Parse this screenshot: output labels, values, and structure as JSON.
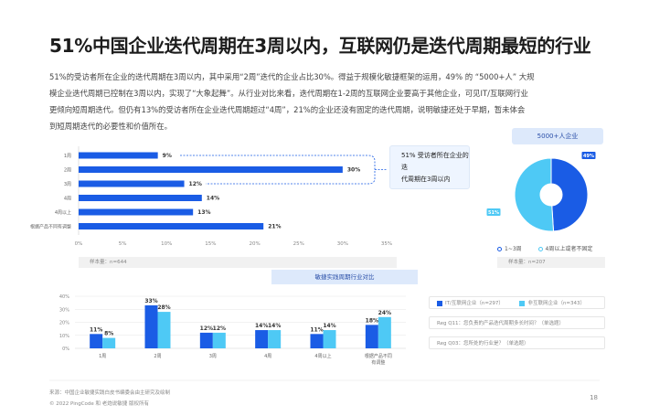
{
  "page": {
    "title": "51%中国企业迭代周期在3周以内，互联网仍是迭代周期最短的行业",
    "paragraph": [
      "51%的受访者所在企业的迭代周期在3周以内，其中采用“2周”迭代的企业占比30%。得益于规模化敏捷框架的运用，49% 的 “5000+人” 大规",
      "模企业迭代周期已控制在3周以内，实现了“大象起舞”。从行业对比来看，迭代周期在1-2周的互联网企业要高于其他企业，可见IT/互联网行业",
      "更倾向短周期迭代。但仍有13%的受访者所在企业迭代周期超过“4周”，21%的企业还没有固定的迭代周期，说明敏捷还处于早期，暂未体会",
      "到短周期迭代的必要性和价值所在。"
    ],
    "callout": [
      "51% 受访者所在企业的迭",
      "代周期在3周以内"
    ],
    "sample_left": "样本量：n=644",
    "sample_right": "样本量：n=207",
    "pie_title": "5000+人企业",
    "compare_title": "敏捷实践周期行业对比",
    "notes": {
      "legend_line": [
        "IT/互联网企业（n=297）",
        "非互联网企业（n=343）"
      ],
      "q1": "Reg Q11：您负责的产品迭代周期多长时间？（单选题）",
      "q2": "Reg Q03：您所处的行业是？（单选题）"
    },
    "source": "来源：中国企业敏捷实践白皮书编委会由主研究及绘制",
    "copyright": "© 2022 PingCode 和 老炮说敏捷 版权所有",
    "page_number": "18"
  },
  "colors": {
    "primary": "#1a5ce5",
    "cyan": "#4ec9f5",
    "navy": "#14275e",
    "grid": "#e6e6e6"
  },
  "chart_data": [
    {
      "type": "bar",
      "orientation": "horizontal",
      "categories": [
        "1周",
        "2周",
        "3周",
        "4周",
        "4周以上",
        "根据产品不同有调整"
      ],
      "values": [
        9,
        30,
        12,
        14,
        13,
        21
      ],
      "value_labels": [
        "9%",
        "30%",
        "12%",
        "14%",
        "13%",
        "21%"
      ],
      "xlim": [
        0,
        35
      ],
      "xticks": [
        "0%",
        "5%",
        "10%",
        "15%",
        "20%",
        "25%",
        "30%",
        "35%"
      ],
      "grid": false,
      "color": "#1a5ce5"
    },
    {
      "type": "pie",
      "labels": [
        "1~3周",
        "4周以上或者不固定"
      ],
      "values": [
        49,
        51
      ],
      "value_labels": [
        "49%",
        "51%"
      ],
      "colors": [
        "#1a5ce5",
        "#4ec9f5"
      ],
      "donut": true
    },
    {
      "type": "bar",
      "categories": [
        "1周",
        "2周",
        "3周",
        "4周",
        "4周以上",
        "根据产品不同有调整"
      ],
      "category_labels": [
        [
          "1周"
        ],
        [
          "2周"
        ],
        [
          "3周"
        ],
        [
          "4周"
        ],
        [
          "4周以上"
        ],
        [
          "根据产品不同",
          "有调整"
        ]
      ],
      "series": [
        {
          "name": "IT/互联网企业（n=297）",
          "values": [
            11,
            33,
            12,
            14,
            11,
            18
          ],
          "labels": [
            "11%",
            "33%",
            "12%",
            "14%",
            "11%",
            "18%"
          ],
          "color": "#1a5ce5"
        },
        {
          "name": "非互联网企业（n=343）",
          "values": [
            8,
            28,
            12,
            14,
            14,
            24
          ],
          "labels": [
            "8%",
            "28%",
            "12%",
            "14%",
            "14%",
            "24%"
          ],
          "color": "#4ec9f5"
        }
      ],
      "ylim": [
        0,
        40
      ],
      "yticks": [
        "0%",
        "5%",
        "10%",
        "15%",
        "20%",
        "25%",
        "30%",
        "35%",
        "40%"
      ],
      "grid": true,
      "legend": "right"
    }
  ]
}
